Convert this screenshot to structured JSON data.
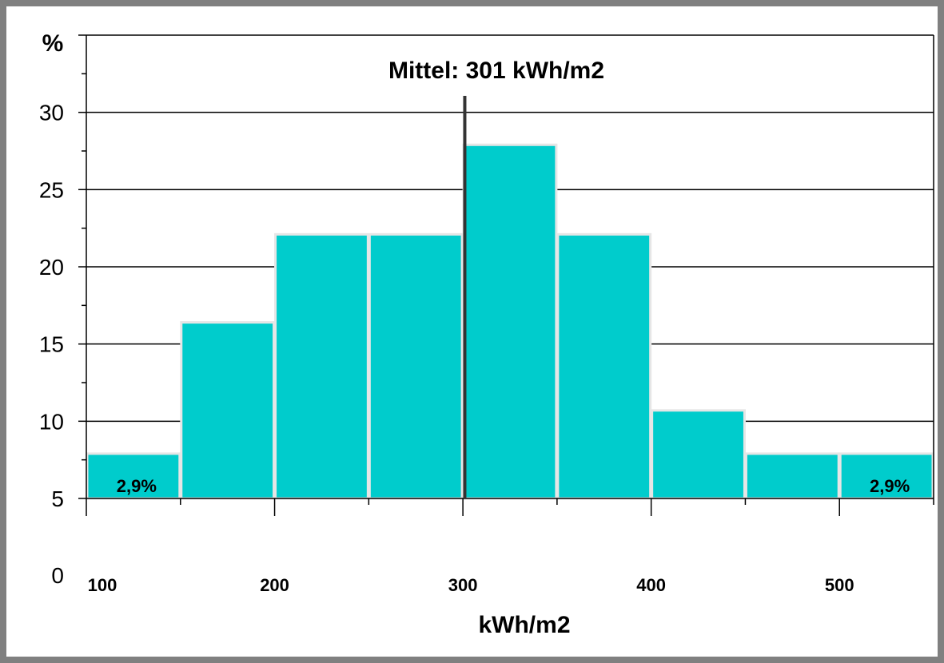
{
  "chart_data": {
    "type": "bar",
    "xlabel": "kWh/m2",
    "ylabel": "%",
    "colors": {
      "bar": "#00cccc",
      "bar_edge": "#e6e6e6",
      "grid": "#000000",
      "frame": "#808080",
      "mean_line": "#333333"
    },
    "grid": true,
    "ylim": [
      5,
      35
    ],
    "xlim": [
      100,
      550
    ],
    "x_tick_values": [
      100,
      200,
      300,
      400,
      500
    ],
    "x_tick_labels": [
      "100",
      "200",
      "300",
      "400",
      "500"
    ],
    "y_tick_values": [
      5,
      10,
      15,
      20,
      25,
      30
    ],
    "y_tick_labels": [
      "5",
      "10",
      "15",
      "20",
      "25",
      "30"
    ],
    "y_extra_label": "0",
    "bins": [
      {
        "start": 100,
        "end": 150,
        "value": 7.9
      },
      {
        "start": 150,
        "end": 200,
        "value": 16.4
      },
      {
        "start": 200,
        "end": 250,
        "value": 22.1
      },
      {
        "start": 250,
        "end": 300,
        "value": 22.1
      },
      {
        "start": 300,
        "end": 350,
        "value": 27.9
      },
      {
        "start": 350,
        "end": 400,
        "value": 22.1
      },
      {
        "start": 400,
        "end": 450,
        "value": 10.7
      },
      {
        "start": 450,
        "end": 500,
        "value": 7.9
      },
      {
        "start": 500,
        "end": 550,
        "value": 7.9
      }
    ],
    "data_labels": [
      {
        "bin": 0,
        "text": "2,9%"
      },
      {
        "bin": 8,
        "text": "2,9%"
      }
    ],
    "mean": {
      "x": 301,
      "label": "Mittel: 301 kWh/m2"
    }
  }
}
